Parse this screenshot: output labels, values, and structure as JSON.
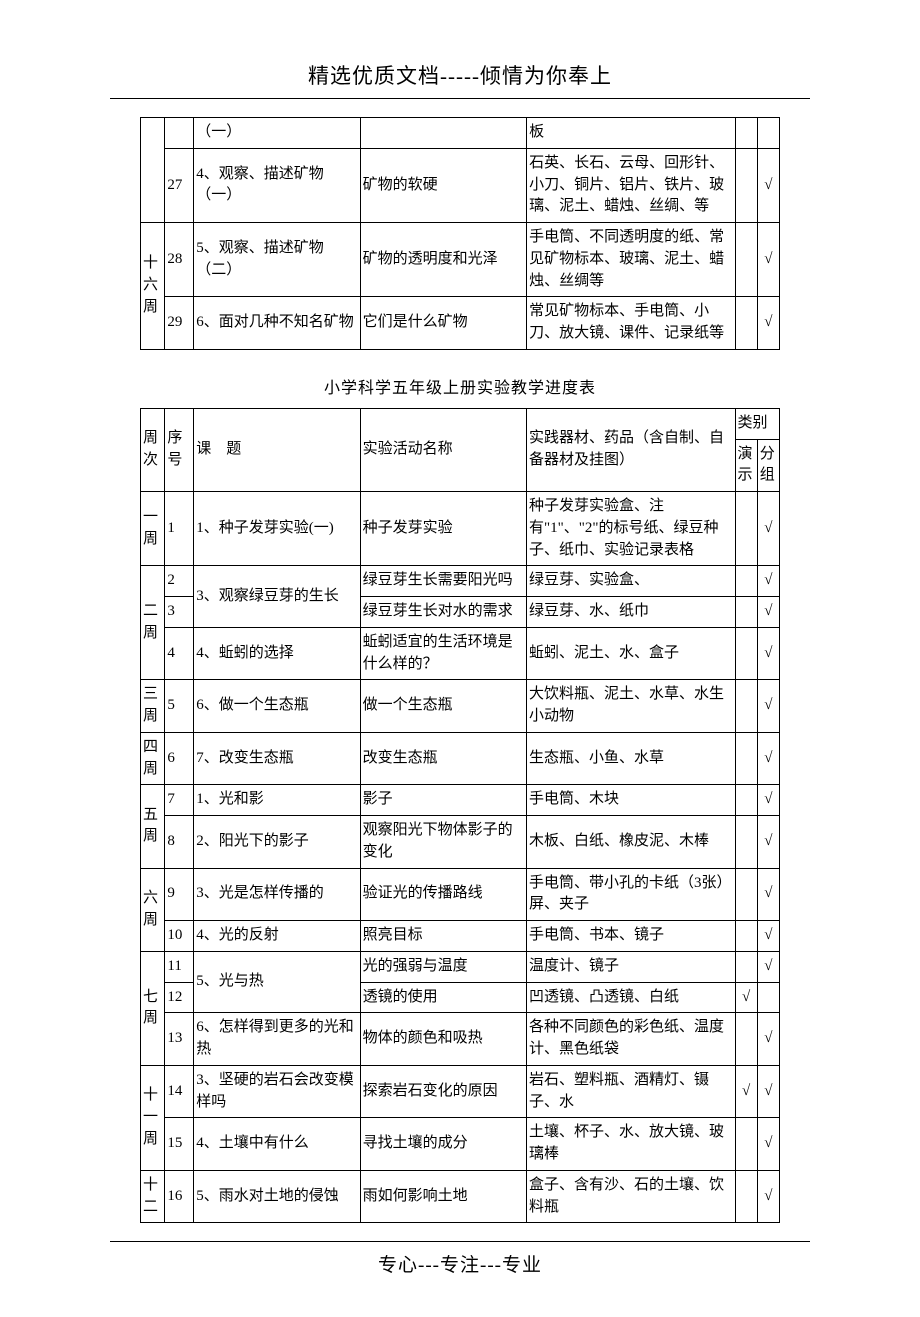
{
  "header": "精选优质文档-----倾情为你奉上",
  "footer": "专心---专注---专业",
  "table1": {
    "rows": [
      {
        "week": "",
        "seq": "",
        "topic": "（一）",
        "exp": "",
        "equip": "板",
        "demo": "",
        "group": ""
      },
      {
        "week": "",
        "seq": "27",
        "topic": "4、观察、描述矿物（一）",
        "exp": "矿物的软硬",
        "equip": "石英、长石、云母、回形针、小刀、铜片、铝片、铁片、玻璃、泥土、蜡烛、丝绸、等",
        "demo": "",
        "group": "√"
      },
      {
        "week": "十六周",
        "seq": "28",
        "topic": "5、观察、描述矿物（二）",
        "exp": "矿物的透明度和光泽",
        "equip": "手电筒、不同透明度的纸、常见矿物标本、玻璃、泥土、蜡烛、丝绸等",
        "demo": "",
        "group": "√"
      },
      {
        "week": "",
        "seq": "29",
        "topic": "6、面对几种不知名矿物",
        "exp": "它们是什么矿物",
        "equip": "常见矿物标本、手电筒、小刀、放大镜、课件、记录纸等",
        "demo": "",
        "group": "√"
      }
    ]
  },
  "title2": "小学科学五年级上册实验教学进度表",
  "table2": {
    "headers": {
      "week": "周次",
      "seq": "序号",
      "topic": "课　题",
      "exp": "实验活动名称",
      "equip": "实践器材、药品（含自制、自备器材及挂图）",
      "cat": "类别",
      "demo": "演示",
      "group": "分组"
    },
    "rows": [
      {
        "week": "一周",
        "seq": "1",
        "topic": "1、种子发芽实验(一)",
        "exp": "种子发芽实验",
        "equip": "种子发芽实验盒、注有\"1\"、\"2\"的标号纸、绿豆种子、纸巾、实验记录表格",
        "demo": "",
        "group": "√"
      },
      {
        "week": "二周",
        "rowspan": 3,
        "items": [
          {
            "seq": "2",
            "topic": "3、观察绿豆芽的生长",
            "topic_rowspan": 2,
            "exp": "绿豆芽生长需要阳光吗",
            "equip": "绿豆芽、实验盒、",
            "demo": "",
            "group": "√"
          },
          {
            "seq": "3",
            "exp": "绿豆芽生长对水的需求",
            "equip": "绿豆芽、水、纸巾",
            "demo": "",
            "group": "√"
          },
          {
            "seq": "4",
            "topic": "4、蚯蚓的选择",
            "exp": "蚯蚓适宜的生活环境是什么样的？",
            "equip": "蚯蚓、泥土、水、盒子",
            "demo": "",
            "group": "√"
          }
        ]
      },
      {
        "week": "三周",
        "seq": "5",
        "topic": "6、做一个生态瓶",
        "exp": "做一个生态瓶",
        "equip": "大饮料瓶、泥土、水草、水生小动物",
        "demo": "",
        "group": "√"
      },
      {
        "week": "四周",
        "seq": "6",
        "topic": "7、改变生态瓶",
        "exp": "改变生态瓶",
        "equip": "生态瓶、小鱼、水草",
        "demo": "",
        "group": "√"
      },
      {
        "week": "五周",
        "rowspan": 2,
        "items": [
          {
            "seq": "7",
            "topic": "1、光和影",
            "exp": "影子",
            "equip": "手电筒、木块",
            "demo": "",
            "group": "√"
          },
          {
            "seq": "8",
            "topic": "2、阳光下的影子",
            "exp": "观察阳光下物体影子的变化",
            "equip": "木板、白纸、橡皮泥、木棒",
            "demo": "",
            "group": "√"
          }
        ]
      },
      {
        "week": "六周",
        "rowspan": 2,
        "items": [
          {
            "seq": "9",
            "topic": "3、光是怎样传播的",
            "exp": "验证光的传播路线",
            "equip": "手电筒、带小孔的卡纸（3张）屏、夹子",
            "demo": "",
            "group": "√"
          },
          {
            "seq": "10",
            "topic": "4、光的反射",
            "exp": "照亮目标",
            "equip": "手电筒、书本、镜子",
            "demo": "",
            "group": "√"
          }
        ]
      },
      {
        "week": "七周",
        "rowspan": 3,
        "items": [
          {
            "seq": "11",
            "topic": "5、光与热",
            "topic_rowspan": 2,
            "exp": "光的强弱与温度",
            "equip": "温度计、镜子",
            "demo": "",
            "group": "√"
          },
          {
            "seq": "12",
            "exp": "透镜的使用",
            "equip": "凹透镜、凸透镜、白纸",
            "demo": "√",
            "group": ""
          },
          {
            "seq": "13",
            "topic": "6、怎样得到更多的光和热",
            "exp": "物体的颜色和吸热",
            "equip": "各种不同颜色的彩色纸、温度计、黑色纸袋",
            "demo": "",
            "group": "√"
          }
        ]
      },
      {
        "week": "十一周",
        "rowspan": 2,
        "items": [
          {
            "seq": "14",
            "topic": "3、坚硬的岩石会改变模样吗",
            "exp": "探索岩石变化的原因",
            "equip": "岩石、塑料瓶、酒精灯、镊子、水",
            "demo": "√",
            "group": "√"
          },
          {
            "seq": "15",
            "topic": "4、土壤中有什么",
            "exp": "寻找土壤的成分",
            "equip": "土壤、杯子、水、放大镜、玻璃棒",
            "demo": "",
            "group": "√"
          }
        ]
      },
      {
        "week": "十二",
        "seq": "16",
        "topic": "5、雨水对土地的侵蚀",
        "exp": "雨如何影响土地",
        "equip": "盒子、含有沙、石的土壤、饮料瓶",
        "demo": "",
        "group": "√"
      }
    ]
  }
}
